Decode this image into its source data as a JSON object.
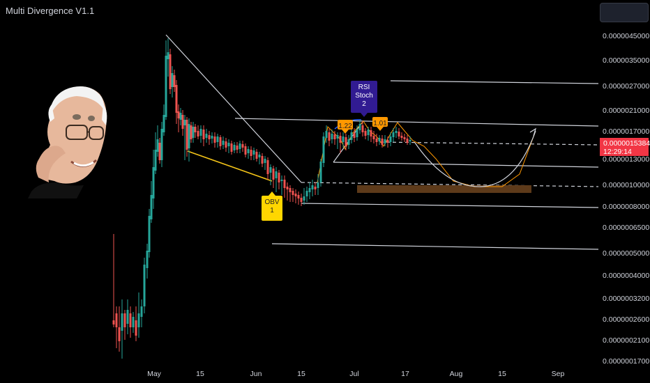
{
  "indicator": {
    "title": "Multi Divergence V1.1"
  },
  "colors": {
    "background": "#000000",
    "up": "#26a69a",
    "down": "#ef5350",
    "price_badge": "#f23645",
    "obv_label": "#ffd600",
    "rsi_label": "#311b92",
    "ratio_label": "#ff9800",
    "support_zone": "#5d3a1a"
  },
  "chart_data": {
    "type": "candlestick",
    "y_scale": "log",
    "ylim": [
      1.5e-06,
      5.8e-06
    ],
    "y_ticks": [
      "0.0000045000",
      "0.0000035000",
      "0.0000027000",
      "0.0000021000",
      "0.0000017000",
      "0.0000013000",
      "0.0000010000",
      "0.0000008000",
      "0.0000006500",
      "0.0000005000",
      "0.0000004000",
      "0.0000003200",
      "0.0000002600",
      "0.0000002100",
      "0.0000001700"
    ],
    "x_ticks": [
      "May",
      "15",
      "Jun",
      "15",
      "Jul",
      "17",
      "Aug",
      "15",
      "Sep"
    ],
    "current_price": {
      "value": "0.0000015384",
      "countdown": "12:29:14"
    },
    "labels": [
      {
        "text": [
          "OBV",
          "1"
        ],
        "type": "obv"
      },
      {
        "text": [
          "RSI",
          "Stoch",
          "2"
        ],
        "type": "rsi"
      },
      {
        "text": [
          "1.22"
        ],
        "type": "ratio"
      },
      {
        "text": [
          "1.01"
        ],
        "type": "ratio"
      }
    ]
  }
}
